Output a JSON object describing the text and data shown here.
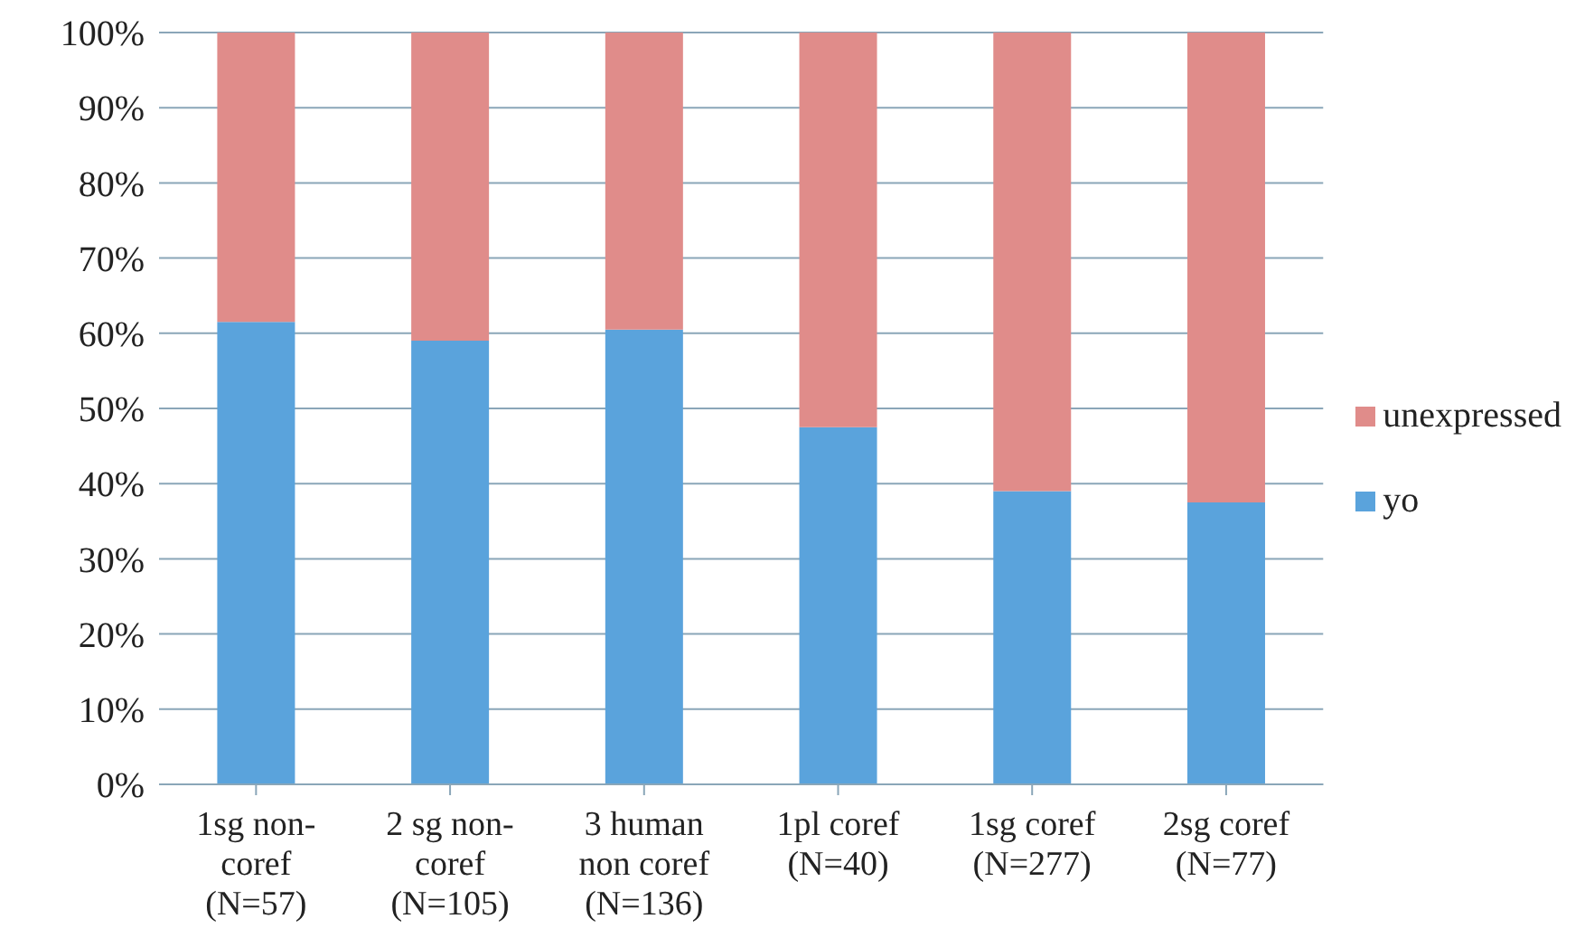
{
  "chart_data": {
    "type": "bar",
    "stacked": true,
    "categories": [
      "1sg non-\ncoref\n(N=57)",
      "2 sg non-\ncoref\n(N=105)",
      "3 human\nnon coref\n(N=136)",
      "1pl coref\n(N=40)",
      "1sg coref\n(N=277)",
      "2sg coref\n(N=77)"
    ],
    "series": [
      {
        "name": "yo",
        "color": "#5aa3dc",
        "values": [
          61.5,
          59,
          60.5,
          47.5,
          39,
          37.5
        ]
      },
      {
        "name": "unexpressed",
        "color": "#e08c8a",
        "values": [
          38.5,
          41,
          39.5,
          52.5,
          61,
          62.5
        ]
      }
    ],
    "ylim": [
      0,
      100
    ],
    "yticks": [
      {
        "value": 0,
        "label": "0%"
      },
      {
        "value": 10,
        "label": "10%"
      },
      {
        "value": 20,
        "label": "20%"
      },
      {
        "value": 30,
        "label": "30%"
      },
      {
        "value": 40,
        "label": "40%"
      },
      {
        "value": 50,
        "label": "50%"
      },
      {
        "value": 60,
        "label": "60%"
      },
      {
        "value": 70,
        "label": "70%"
      },
      {
        "value": 80,
        "label": "80%"
      },
      {
        "value": 90,
        "label": "90%"
      },
      {
        "value": 100,
        "label": "100%"
      }
    ],
    "grid": "y",
    "legend": "right"
  }
}
